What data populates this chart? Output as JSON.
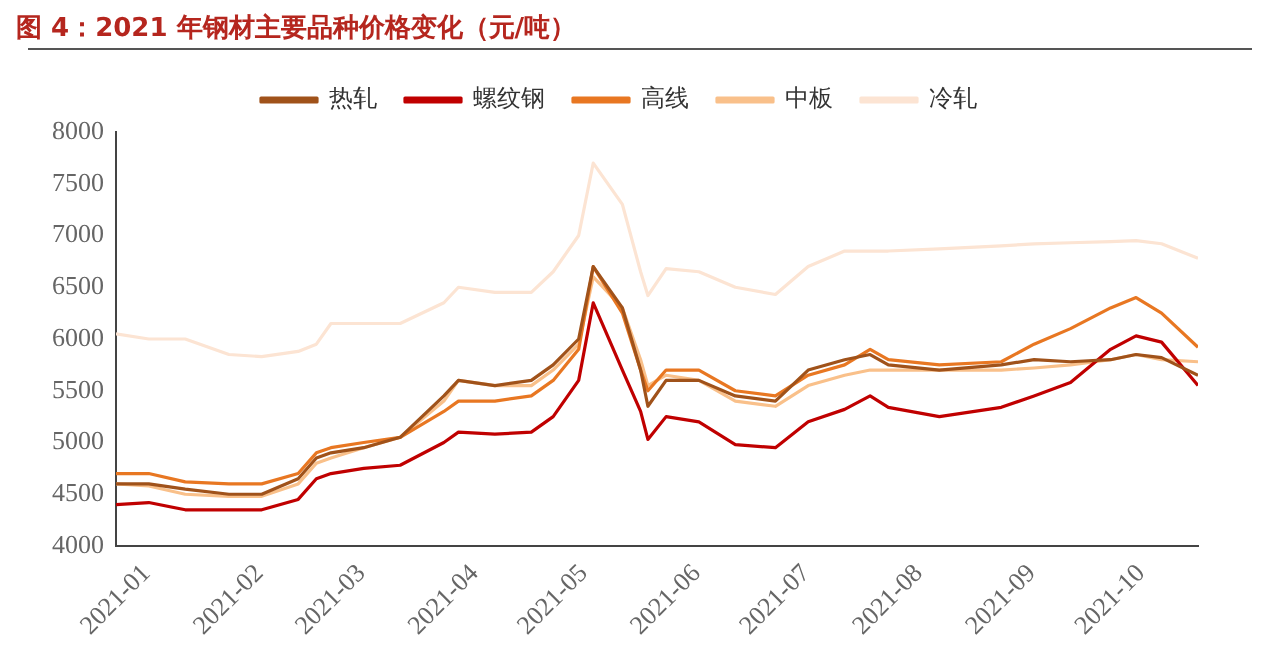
{
  "chart_data": {
    "type": "line",
    "title": "图 4：2021 年钢材主要品种价格变化（元/吨）",
    "x": [
      "2021-01-01",
      "2021-01-10",
      "2021-01-20",
      "2021-02-01",
      "2021-02-10",
      "2021-02-20",
      "2021-02-25",
      "2021-03-01",
      "2021-03-10",
      "2021-03-20",
      "2021-04-01",
      "2021-04-05",
      "2021-04-15",
      "2021-04-25",
      "2021-05-01",
      "2021-05-08",
      "2021-05-12",
      "2021-05-20",
      "2021-05-25",
      "2021-05-27",
      "2021-06-01",
      "2021-06-10",
      "2021-06-20",
      "2021-07-01",
      "2021-07-10",
      "2021-07-20",
      "2021-07-27",
      "2021-08-01",
      "2021-08-15",
      "2021-09-01",
      "2021-09-10",
      "2021-09-20",
      "2021-10-01",
      "2021-10-08",
      "2021-10-15",
      "2021-10-25"
    ],
    "series": [
      {
        "name": "热轧",
        "color": "#a0521a",
        "values": [
          4600,
          4600,
          4550,
          4500,
          4500,
          4650,
          4850,
          4900,
          4950,
          5050,
          5450,
          5600,
          5550,
          5600,
          5750,
          6000,
          6700,
          6300,
          5700,
          5350,
          5600,
          5600,
          5450,
          5400,
          5700,
          5800,
          5850,
          5750,
          5700,
          5750,
          5800,
          5780,
          5800,
          5850,
          5820,
          5650
        ]
      },
      {
        "name": "螺纹钢",
        "color": "#c00000",
        "values": [
          4400,
          4420,
          4350,
          4350,
          4350,
          4450,
          4650,
          4700,
          4750,
          4780,
          5000,
          5100,
          5080,
          5100,
          5250,
          5600,
          6350,
          5700,
          5300,
          5030,
          5250,
          5200,
          4980,
          4950,
          5200,
          5320,
          5450,
          5340,
          5250,
          5340,
          5450,
          5580,
          5900,
          6030,
          5970,
          5550
        ]
      },
      {
        "name": "高线",
        "color": "#e87722",
        "values": [
          4700,
          4700,
          4620,
          4600,
          4600,
          4700,
          4900,
          4950,
          5000,
          5050,
          5300,
          5400,
          5400,
          5450,
          5600,
          5900,
          6700,
          6250,
          5700,
          5500,
          5700,
          5700,
          5500,
          5450,
          5650,
          5750,
          5900,
          5800,
          5750,
          5780,
          5950,
          6100,
          6300,
          6400,
          6250,
          5920
        ]
      },
      {
        "name": "中板",
        "color": "#f9c08a",
        "values": [
          4600,
          4580,
          4500,
          4480,
          4480,
          4600,
          4800,
          4850,
          4950,
          5050,
          5400,
          5600,
          5550,
          5550,
          5700,
          5950,
          6600,
          6300,
          5800,
          5550,
          5650,
          5600,
          5400,
          5350,
          5550,
          5650,
          5700,
          5700,
          5700,
          5700,
          5720,
          5750,
          5800,
          5850,
          5800,
          5780
        ]
      },
      {
        "name": "冷轧",
        "color": "#fce4d3",
        "values": [
          6050,
          6000,
          6000,
          5850,
          5830,
          5880,
          5950,
          6150,
          6150,
          6150,
          6350,
          6500,
          6450,
          6450,
          6650,
          7000,
          7700,
          7300,
          6650,
          6420,
          6680,
          6650,
          6500,
          6430,
          6700,
          6850,
          6850,
          6850,
          6870,
          6900,
          6920,
          6930,
          6940,
          6950,
          6920,
          6780
        ]
      }
    ],
    "xlim": [
      "2021-01-01",
      "2021-10-25"
    ],
    "xticks": [
      {
        "value": "2021-01-01",
        "label": "2021-01"
      },
      {
        "value": "2021-02-01",
        "label": "2021-02"
      },
      {
        "value": "2021-03-01",
        "label": "2021-03"
      },
      {
        "value": "2021-04-01",
        "label": "2021-04"
      },
      {
        "value": "2021-05-01",
        "label": "2021-05"
      },
      {
        "value": "2021-06-01",
        "label": "2021-06"
      },
      {
        "value": "2021-07-01",
        "label": "2021-07"
      },
      {
        "value": "2021-08-01",
        "label": "2021-08"
      },
      {
        "value": "2021-09-01",
        "label": "2021-09"
      },
      {
        "value": "2021-10-01",
        "label": "2021-10"
      }
    ],
    "ylim": [
      4000,
      8000
    ],
    "yticks": [
      4000,
      4500,
      5000,
      5500,
      6000,
      6500,
      7000,
      7500,
      8000
    ],
    "grid": false,
    "legend": "top",
    "marker": "none",
    "line_style": "solid"
  }
}
